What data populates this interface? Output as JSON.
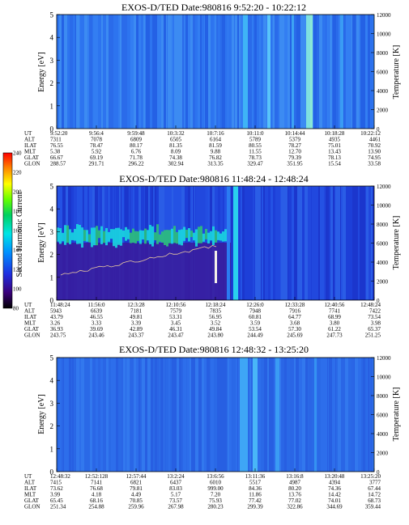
{
  "colorbar": {
    "label": "Second Harmonic Current",
    "ticks": [
      "240",
      "220",
      "200",
      "180",
      "160",
      "140",
      "120",
      "100",
      "80"
    ]
  },
  "panels": [
    {
      "title": "EXOS-D/TED   Date:980816  9:52:20 - 10:22:12",
      "ylabel": "Energy [eV]",
      "y2label": "Temperature [K]",
      "yticks": [
        "5",
        "4",
        "3",
        "2",
        "1",
        "0"
      ],
      "y2ticks": [
        "12000",
        "10000",
        "8000",
        "6000",
        "4000",
        "2000",
        "0"
      ],
      "row_labels": [
        "UT",
        "ALT",
        "ILAT",
        "MLT",
        "GLAT",
        "GLON"
      ],
      "columns": [
        [
          "9:52:20",
          "7311",
          "76.55",
          "5.38",
          "66.67",
          "288.57"
        ],
        [
          "9:56:4",
          "7078",
          "78.47",
          "5.92",
          "69.19",
          "291.71"
        ],
        [
          "9:59:48",
          "6809",
          "80.17",
          "6.76",
          "71.78",
          "296.22"
        ],
        [
          "10:3:32",
          "6505",
          "81.35",
          "8.09",
          "74.38",
          "302.94"
        ],
        [
          "10:7:16",
          "6164",
          "81.59",
          "9.88",
          "76.82",
          "313.35"
        ],
        [
          "10:11:0",
          "5789",
          "80.55",
          "11.55",
          "78.73",
          "329.47"
        ],
        [
          "10:14:44",
          "5379",
          "78.27",
          "12.70",
          "79.39",
          "351.95"
        ],
        [
          "10:18:28",
          "4935",
          "75.01",
          "13.43",
          "78.13",
          "15.54"
        ],
        [
          "10:22:12",
          "4461",
          "70.92",
          "13.90",
          "74.95",
          "33.58"
        ]
      ]
    },
    {
      "title": "EXOS-D/TED   Date:980816  11:48:24 - 12:48:24",
      "ylabel": "Energy [eV]",
      "y2label": "Temperature [K]",
      "yticks": [
        "5",
        "4",
        "3",
        "2",
        "1",
        "0"
      ],
      "y2ticks": [
        "12000",
        "10000",
        "8000",
        "6000",
        "4000",
        "2000",
        "0"
      ],
      "row_labels": [
        "UT",
        "ALT",
        "ILAT",
        "MLT",
        "GLAT",
        "GLON"
      ],
      "columns": [
        [
          "11:48:24",
          "5943",
          "43.79",
          "3.26",
          "36.93",
          "243.75"
        ],
        [
          "11:56:0",
          "6639",
          "46.55",
          "3.33",
          "39.69",
          "243.46"
        ],
        [
          "12:3:28",
          "7181",
          "49.81",
          "3.39",
          "42.89",
          "243.37"
        ],
        [
          "12:10:56",
          "7579",
          "53.31",
          "3.45",
          "46.31",
          "243.47"
        ],
        [
          "12:18:24",
          "7835",
          "56.95",
          "3.52",
          "49.84",
          "243.80"
        ],
        [
          "12:26:0",
          "7948",
          "60.81",
          "3.59",
          "53.54",
          "244.49"
        ],
        [
          "12:33:28",
          "7916",
          "64.77",
          "3.68",
          "57.30",
          "245.69"
        ],
        [
          "12:40:56",
          "7741",
          "68.99",
          "3.80",
          "61.22",
          "247.73"
        ],
        [
          "12:48:24",
          "7422",
          "73.54",
          "3.98",
          "65.37",
          "251.25"
        ]
      ]
    },
    {
      "title": "EXOS-D/TED   Date:980816  12:48:32 - 13:25:20",
      "ylabel": "Energy [eV]",
      "y2label": "Temperature [K]",
      "yticks": [
        "5",
        "4",
        "3",
        "2",
        "1",
        "0"
      ],
      "y2ticks": [
        "12000",
        "10000",
        "8000",
        "6000",
        "4000",
        "2000",
        "0"
      ],
      "row_labels": [
        "UT",
        "ALT",
        "ILAT",
        "MLT",
        "GLAT",
        "GLON"
      ],
      "columns": [
        [
          "12:48:32",
          "7415",
          "73.62",
          "3.99",
          "65.45",
          "251.34"
        ],
        [
          "12:52:128",
          "7141",
          "76.68",
          "4.18",
          "68.16",
          "254.88"
        ],
        [
          "12:57:44",
          "6821",
          "79.81",
          "4.49",
          "70.85",
          "259.96"
        ],
        [
          "13:2:24",
          "6437",
          "83.03",
          "5.17",
          "73.57",
          "267.98"
        ],
        [
          "13:6:56",
          "6010",
          "999.00",
          "7.20",
          "75.93",
          "280.23"
        ],
        [
          "13:11:36",
          "5517",
          "84.36",
          "11.86",
          "77.42",
          "299.39"
        ],
        [
          "13:16:8",
          "4987",
          "80.20",
          "13.76",
          "77.02",
          "322.86"
        ],
        [
          "13:20:48",
          "4394",
          "74.36",
          "14.42",
          "74.01",
          "344.69"
        ],
        [
          "13:25:20",
          "3777",
          "67.44",
          "14.72",
          "68.73",
          "359.44"
        ]
      ]
    }
  ],
  "chart_data": [
    {
      "type": "heatmap",
      "title": "EXOS-D/TED   Date:980816  9:52:20 - 10:22:12",
      "ylabel": "Energy [eV]",
      "y2label": "Temperature [K]",
      "ylim": [
        0,
        5
      ],
      "y2lim": [
        0,
        12000
      ],
      "x": [
        "9:52:20",
        "9:56:4",
        "9:59:48",
        "10:3:32",
        "10:7:16",
        "10:11:0",
        "10:14:44",
        "10:18:28",
        "10:22:12"
      ]
    },
    {
      "type": "heatmap",
      "title": "EXOS-D/TED   Date:980816  11:48:24 - 12:48:24",
      "ylabel": "Energy [eV]",
      "y2label": "Temperature [K]",
      "ylim": [
        0,
        5
      ],
      "y2lim": [
        0,
        12000
      ],
      "x": [
        "11:48:24",
        "11:56:0",
        "12:3:28",
        "12:10:56",
        "12:18:24",
        "12:26:0",
        "12:33:28",
        "12:40:56",
        "12:48:24"
      ]
    },
    {
      "type": "heatmap",
      "title": "EXOS-D/TED   Date:980816  12:48:32 - 13:25:20",
      "ylabel": "Energy [eV]",
      "y2label": "Temperature [K]",
      "ylim": [
        0,
        5
      ],
      "y2lim": [
        0,
        12000
      ],
      "x": [
        "12:48:32",
        "12:52:128",
        "12:57:44",
        "13:2:24",
        "13:6:56",
        "13:11:36",
        "13:16:8",
        "13:20:48",
        "13:25:20"
      ]
    }
  ]
}
